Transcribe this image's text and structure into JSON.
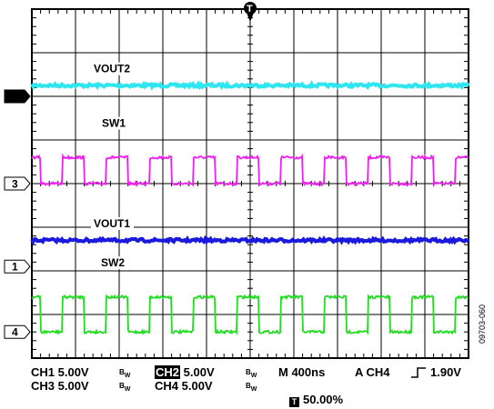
{
  "chart_data": {
    "type": "line",
    "title": "",
    "xlabel": "",
    "ylabel": "",
    "grid": true,
    "divisions": {
      "x": 10,
      "y": 8
    },
    "series": [
      {
        "name": "VOUT2",
        "color": "#2fe6f0",
        "waveform": "dc",
        "level_div": 6.25,
        "channel": "2",
        "ground_div": 6.0
      },
      {
        "name": "SW1",
        "color": "#ee22ee",
        "waveform": "square",
        "high_div": 4.6,
        "low_div": 4.0,
        "channel": "3",
        "ground_div": 4.0,
        "period_ns": 400,
        "duty": 0.5
      },
      {
        "name": "VOUT1",
        "color": "#1a1adf",
        "waveform": "dc",
        "level_div": 2.7,
        "channel": "1",
        "ground_div": 2.1
      },
      {
        "name": "SW2",
        "color": "#22dd22",
        "waveform": "square",
        "high_div": 1.4,
        "low_div": 0.6,
        "channel": "4",
        "ground_div": 0.6,
        "period_ns": 400,
        "duty": 0.5
      }
    ],
    "trigger": {
      "marker": "T",
      "position": "50.00%"
    }
  },
  "readout": {
    "ch1": "CH1 5.00V",
    "ch3": "CH3 5.00V",
    "ch2_tag": "CH2",
    "ch2_val": "5.00V",
    "ch4": "CH4 5.00V",
    "bw": "B",
    "bw_sub": "W",
    "timebase": "M 400ns",
    "trig_label": "A  CH4",
    "trig_level": "1.90V",
    "trig_pos": "50.00%"
  },
  "figure_code": "09703-060"
}
